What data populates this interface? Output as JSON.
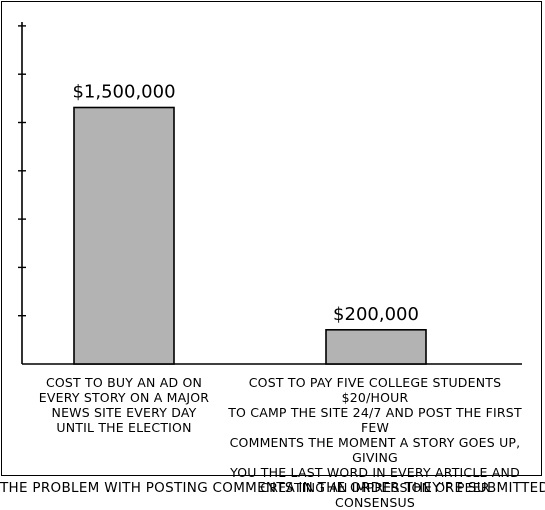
{
  "chart_data": {
    "type": "bar",
    "categories": [
      "COST TO BUY AN AD ON\nEVERY STORY ON A MAJOR\nNEWS SITE EVERY DAY\nUNTIL THE ELECTION",
      "COST TO PAY FIVE COLLEGE STUDENTS $20/HOUR\nTO CAMP THE SITE 24/7 AND POST THE FIRST FEW\nCOMMENTS THE MOMENT A STORY GOES UP, GIVING\nYOU THE LAST WORD IN EVERY ARTICLE AND\nCREATING AN IMPRESSION OF PEER CONSENSUS"
    ],
    "values": [
      1500000,
      200000
    ],
    "data_labels": [
      "$1,500,000",
      "$200,000"
    ],
    "ylim": [
      0,
      2000000
    ],
    "grid": false,
    "bar_color": "#b3b3b3"
  },
  "caption": "THE PROBLEM WITH POSTING COMMENTS IN THE ORDER THEY'RE SUBMITTED"
}
